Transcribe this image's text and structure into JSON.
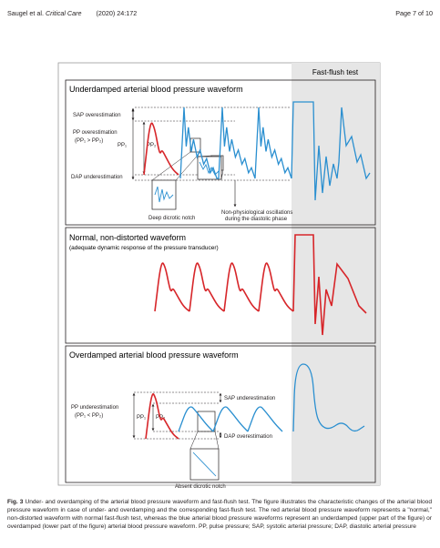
{
  "header": {
    "authors": "Saugel et al.",
    "journal": "Critical Care",
    "citation": "(2020) 24:172",
    "page": "Page 7 of 10"
  },
  "figure": {
    "fastflush_label": "Fast-flush test",
    "panels": [
      {
        "title": "Underdamped arterial blood pressure waveform",
        "labels": {
          "sap": "SAP overestimation",
          "pp": "PP overestimation",
          "pp_ratio": "(PP₁ > PP₂)",
          "pp1": "PP₁",
          "pp2": "PP₂",
          "dap": "DAP underestimation",
          "notch": "Deep dicrotic notch",
          "osc1": "Non-physiological oscillations",
          "osc2": "during the diastolic phase"
        }
      },
      {
        "title": "Normal, non-distorted waveform",
        "subtitle": "(adequate dynamic response of the pressure transducer)"
      },
      {
        "title": "Overdamped arterial blood pressure waveform",
        "labels": {
          "pp": "PP underestimation",
          "pp_ratio": "(PP₁ < PP₂)",
          "pp1": "PP₁",
          "pp2": "PP₂",
          "sap": "SAP underestimation",
          "dap": "DAP overestimation",
          "notch": "Absent dicrotic notch"
        }
      }
    ],
    "colors": {
      "normal": "#d7262a",
      "damped": "#2a8fd0",
      "shade": "#e6e6e6"
    }
  },
  "caption": {
    "fig_label": "Fig. 3",
    "text": "Under- and overdamping of the arterial blood pressure waveform and fast-flush test. The figure illustrates the characteristic changes of the arterial blood pressure waveform in case of under- and overdamping and the corresponding fast-flush test. The red arterial blood pressure waveform represents a \"normal,\" non-distorted waveform with normal fast-flush test, whereas the blue arterial blood pressure waveforms represent an underdamped (upper part of the figure) or overdamped (lower part of the figure) arterial blood pressure waveform. PP, pulse pressure; SAP, systolic arterial pressure; DAP, diastolic arterial pressure"
  }
}
